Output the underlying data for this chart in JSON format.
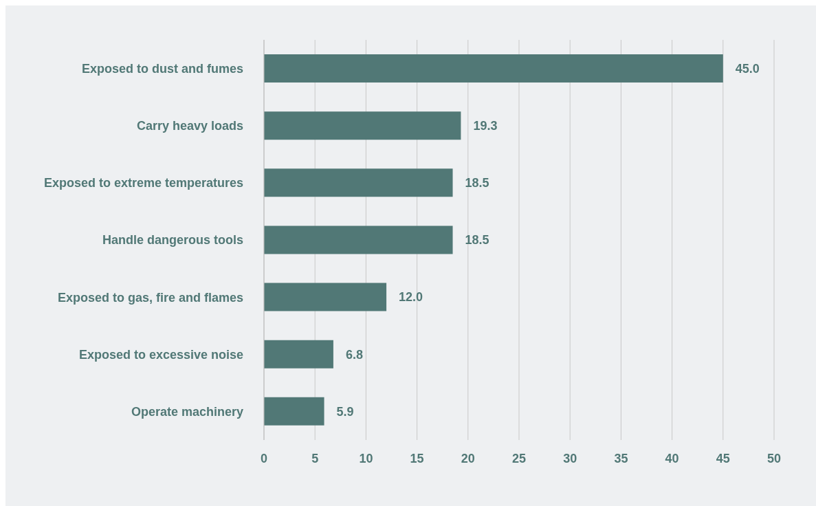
{
  "chart_data": {
    "type": "bar",
    "orientation": "horizontal",
    "categories": [
      "Exposed to dust and fumes",
      "Carry heavy loads",
      "Exposed to extreme temperatures",
      "Handle dangerous tools",
      "Exposed to gas, fire and flames",
      "Exposed to excessive noise",
      "Operate machinery"
    ],
    "values": [
      45.0,
      19.3,
      18.5,
      18.5,
      12.0,
      6.8,
      5.9
    ],
    "value_labels": [
      "45.0",
      "19.3",
      "18.5",
      "18.5",
      "12.0",
      "6.8",
      "5.9"
    ],
    "color": "#517876",
    "xlim": [
      0,
      50
    ],
    "xticks": [
      0,
      5,
      10,
      15,
      20,
      25,
      30,
      35,
      40,
      45,
      50
    ],
    "grid": "x"
  }
}
